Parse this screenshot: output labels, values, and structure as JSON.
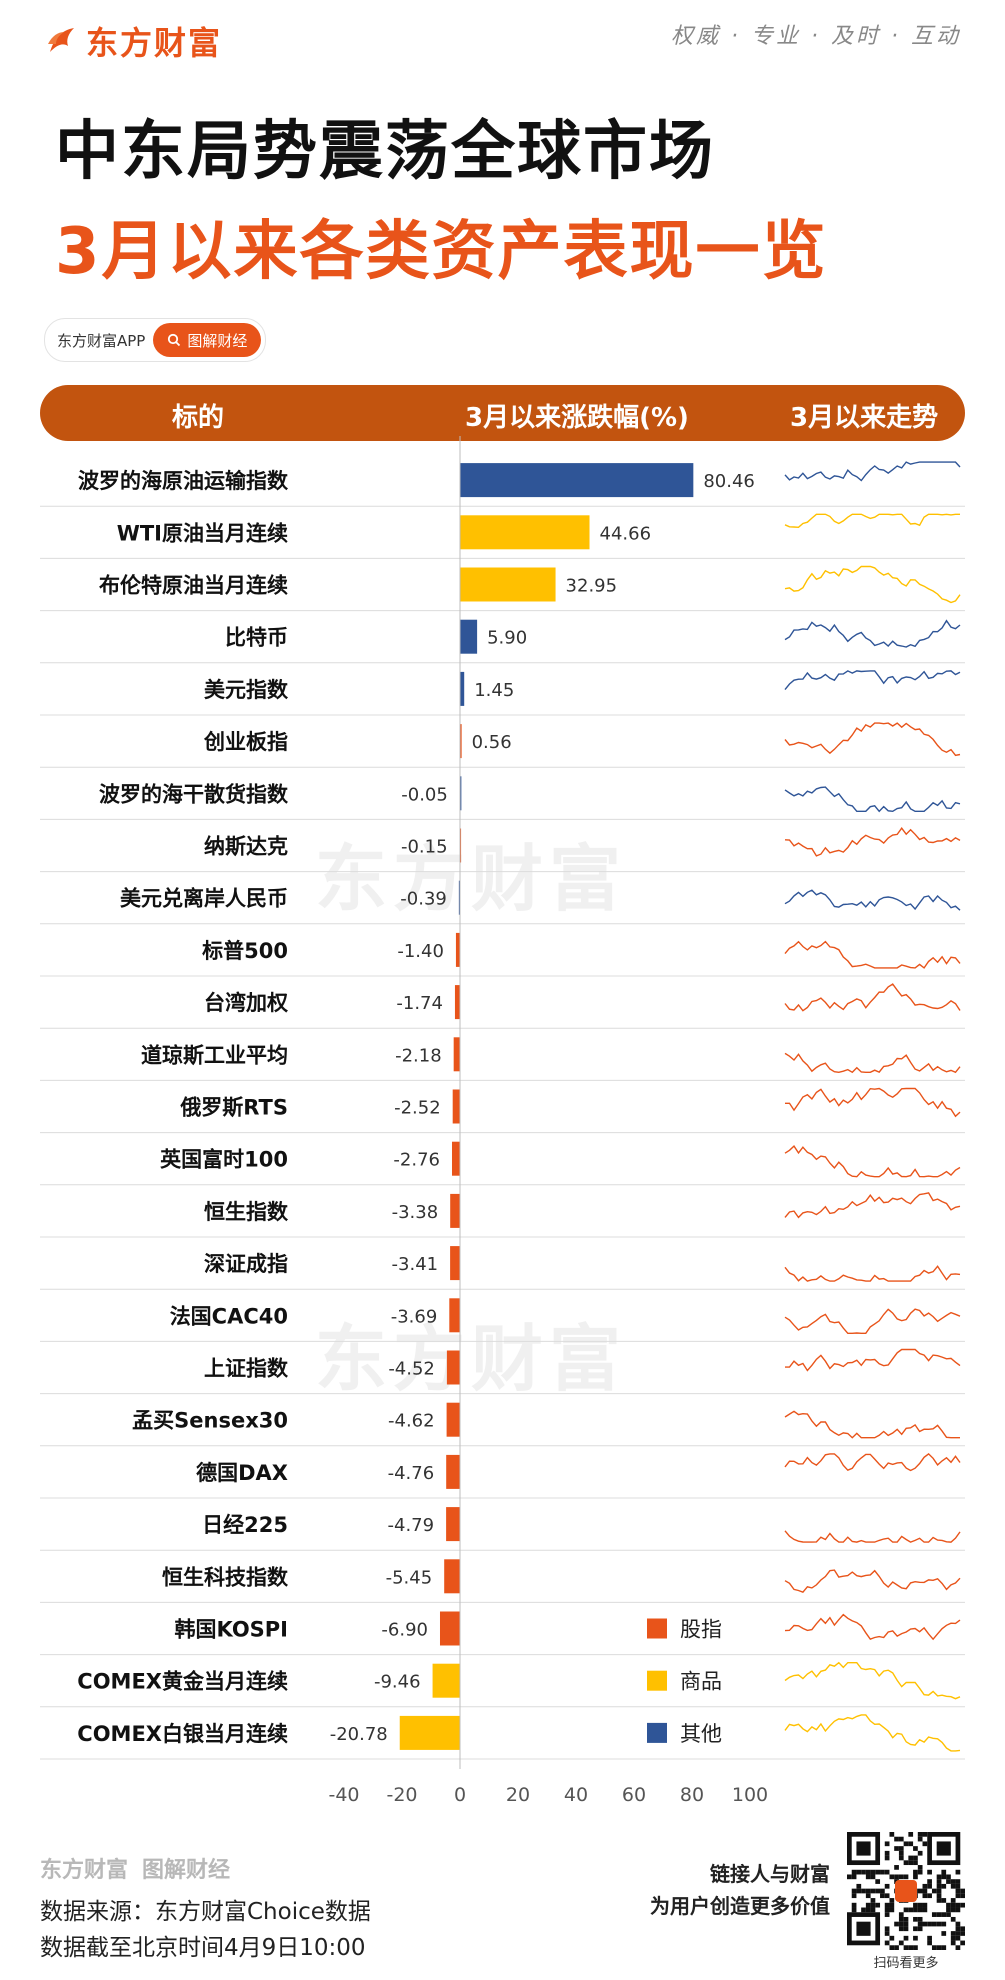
{
  "header": {
    "brand": "东方财富",
    "slogan": "权威 · 专业 · 及时 · 互动",
    "title_line1": "中东局势震荡全球市场",
    "title_line2": "3月以来各类资产表现一览",
    "app_label": "东方财富APP",
    "app_pill": "图解财经"
  },
  "table_header": {
    "col1": "标的",
    "col2": "3月以来涨跌幅(%)",
    "col3": "3月以来走势"
  },
  "colors": {
    "index": "#e8541a",
    "commodity": "#ffc000",
    "other": "#2f5597",
    "accent": "#e8541a",
    "header_bg": "#c2540f"
  },
  "chart_data": {
    "type": "bar",
    "orientation": "horizontal",
    "xlim": [
      -40,
      100
    ],
    "xticks": [
      "-40",
      "-20",
      "0",
      "20",
      "40",
      "60",
      "80",
      "100"
    ],
    "xtick_values": [
      -40,
      -20,
      0,
      20,
      40,
      60,
      80,
      100
    ],
    "categories": [
      "波罗的海原油运输指数",
      "WTI原油当月连续",
      "布伦特原油当月连续",
      "比特币",
      "美元指数",
      "创业板指",
      "波罗的海干散货指数",
      "纳斯达克",
      "美元兑离岸人民币",
      "标普500",
      "台湾加权",
      "道琼斯工业平均",
      "俄罗斯RTS",
      "英国富时100",
      "恒生指数",
      "深证成指",
      "法国CAC40",
      "上证指数",
      "孟买Sensex30",
      "德国DAX",
      "日经225",
      "恒生科技指数",
      "韩国KOSPI",
      "COMEX黄金当月连续",
      "COMEX白银当月连续"
    ],
    "values": [
      80.46,
      44.66,
      32.95,
      5.9,
      1.45,
      0.56,
      -0.05,
      -0.15,
      -0.39,
      -1.4,
      -1.74,
      -2.18,
      -2.52,
      -2.76,
      -3.38,
      -3.41,
      -3.69,
      -4.52,
      -4.62,
      -4.76,
      -4.79,
      -5.45,
      -6.9,
      -9.46,
      -20.78
    ],
    "value_labels": [
      "80.46",
      "44.66",
      "32.95",
      "5.90",
      "1.45",
      "0.56",
      "-0.05",
      "-0.15",
      "-0.39",
      "-1.40",
      "-1.74",
      "-2.18",
      "-2.52",
      "-2.76",
      "-3.38",
      "-3.41",
      "-3.69",
      "-4.52",
      "-4.62",
      "-4.76",
      "-4.79",
      "-5.45",
      "-6.90",
      "-9.46",
      "-20.78"
    ],
    "groups": [
      "other",
      "commodity",
      "commodity",
      "other",
      "other",
      "index",
      "other",
      "index",
      "other",
      "index",
      "index",
      "index",
      "index",
      "index",
      "index",
      "index",
      "index",
      "index",
      "index",
      "index",
      "index",
      "index",
      "index",
      "commodity",
      "commodity"
    ],
    "legend": [
      {
        "key": "index",
        "label": "股指"
      },
      {
        "key": "commodity",
        "label": "商品"
      },
      {
        "key": "other",
        "label": "其他"
      }
    ],
    "legend_position": "bottom-right",
    "grid": false
  },
  "watermark": "东方财富",
  "footer": {
    "brand_logo": "东方财富",
    "brand_tag": "图解财经",
    "source": "数据来源：东方财富Choice数据",
    "cutoff": "数据截至北京时间4月9日10:00",
    "slogan_line1": "链接人与财富",
    "slogan_line2": "为用户创造更多价值",
    "qr_label": "扫码看更多"
  }
}
